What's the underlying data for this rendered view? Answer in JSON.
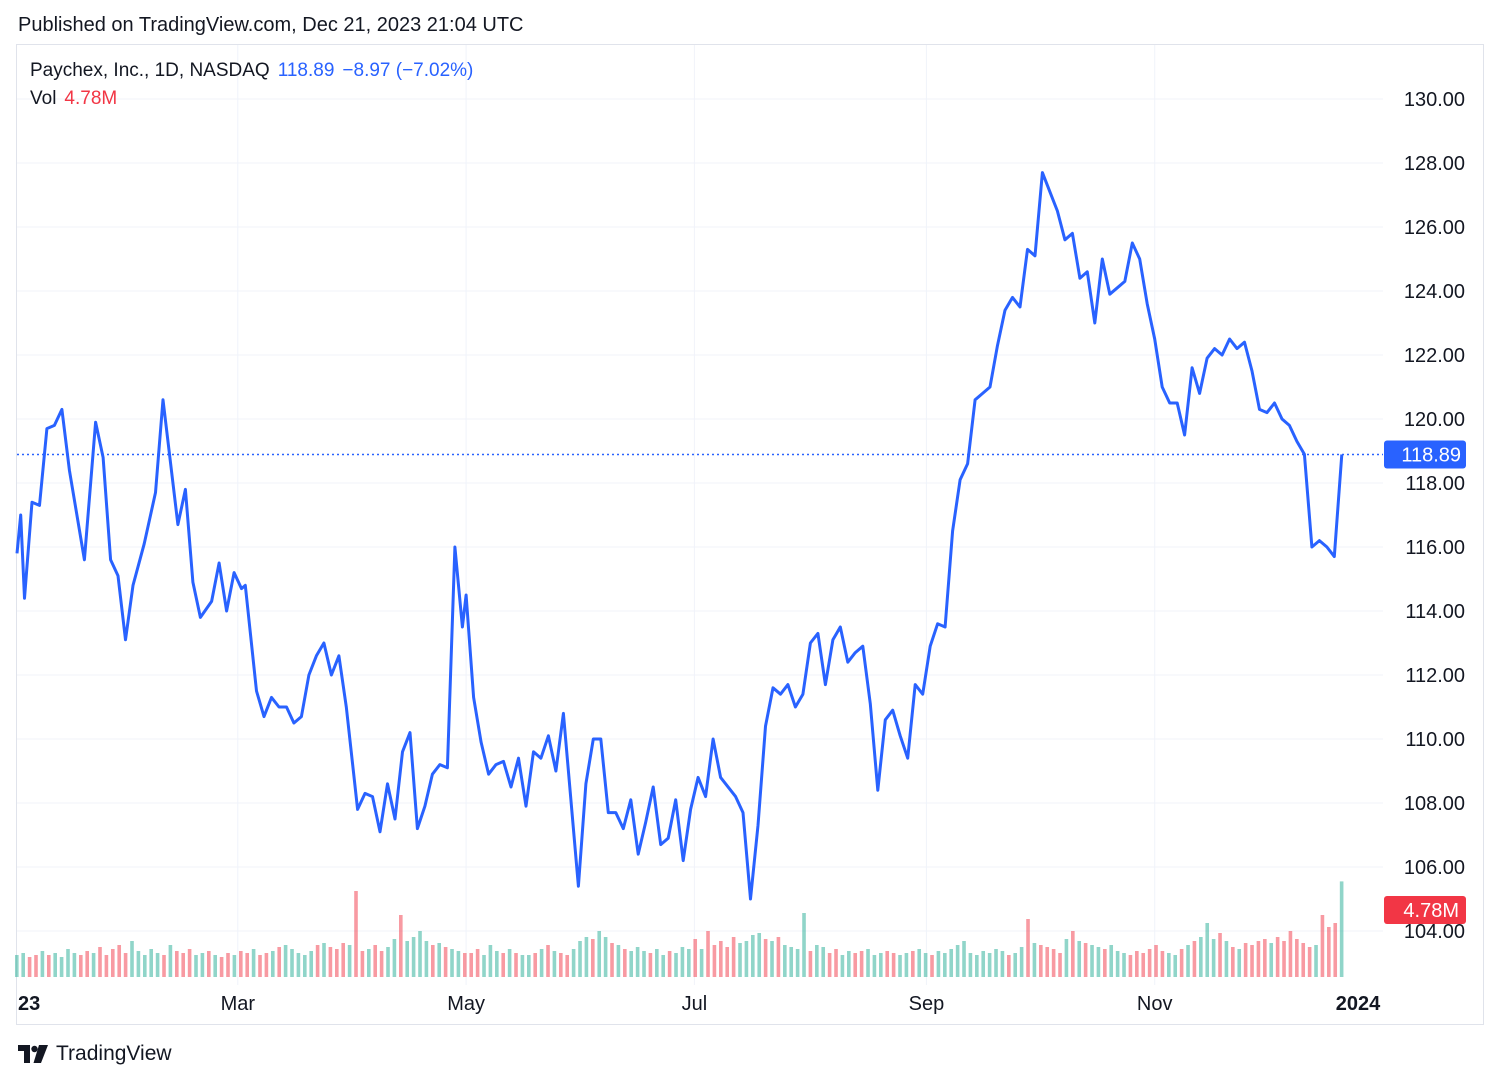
{
  "header": {
    "published": "Published on TradingView.com, Dec 21, 2023 21:04 UTC"
  },
  "legend": {
    "symbol": "Paychex, Inc., 1D, NASDAQ",
    "last": "118.89",
    "change": "−8.97 (−7.02%)",
    "vol_label": "Vol",
    "vol_value": "4.78M"
  },
  "footer": {
    "brand": "TradingView"
  },
  "colors": {
    "line": "#2962ff",
    "vol_up": "#22ab94",
    "vol_down": "#f23645",
    "last_price_badge": "#2962ff",
    "vol_badge": "#f23645",
    "grid": "#f0f3fa"
  },
  "chart_data": {
    "type": "line",
    "symbol": "PAYX",
    "interval": "1D",
    "y_axis": {
      "ticks": [
        "104.00",
        "106.00",
        "108.00",
        "110.00",
        "112.00",
        "114.00",
        "116.00",
        "118.00",
        "120.00",
        "122.00",
        "124.00",
        "126.00",
        "128.00",
        "130.00"
      ],
      "range": [
        103.0,
        131.5
      ],
      "position": "right"
    },
    "x_axis": {
      "ticks": [
        "23",
        "Mar",
        "May",
        "Jul",
        "Sep",
        "Nov",
        "2024"
      ],
      "tick_dates": [
        "2023-01-01",
        "2023-03-01",
        "2023-05-01",
        "2023-07-01",
        "2023-09-01",
        "2023-11-01",
        "2024-01-01"
      ],
      "range": [
        "2023-01-01",
        "2024-01-01"
      ]
    },
    "last_price_label": "118.89",
    "last_price": 118.89,
    "volume_label": "4.78M",
    "grid": true,
    "series": [
      {
        "name": "Paychex, Inc.",
        "points": [
          [
            "2023-01-01",
            115.8
          ],
          [
            "2023-01-02",
            117.0
          ],
          [
            "2023-01-03",
            114.4
          ],
          [
            "2023-01-05",
            117.4
          ],
          [
            "2023-01-07",
            117.3
          ],
          [
            "2023-01-09",
            119.7
          ],
          [
            "2023-01-11",
            119.8
          ],
          [
            "2023-01-13",
            120.3
          ],
          [
            "2023-01-15",
            118.4
          ],
          [
            "2023-01-19",
            115.6
          ],
          [
            "2023-01-22",
            119.9
          ],
          [
            "2023-01-24",
            118.8
          ],
          [
            "2023-01-26",
            115.6
          ],
          [
            "2023-01-28",
            115.1
          ],
          [
            "2023-01-30",
            113.1
          ],
          [
            "2023-02-01",
            114.8
          ],
          [
            "2023-02-04",
            116.1
          ],
          [
            "2023-02-07",
            117.7
          ],
          [
            "2023-02-09",
            120.6
          ],
          [
            "2023-02-13",
            116.7
          ],
          [
            "2023-02-15",
            117.8
          ],
          [
            "2023-02-17",
            114.9
          ],
          [
            "2023-02-19",
            113.8
          ],
          [
            "2023-02-22",
            114.3
          ],
          [
            "2023-02-24",
            115.5
          ],
          [
            "2023-02-26",
            114.0
          ],
          [
            "2023-02-28",
            115.2
          ],
          [
            "2023-03-02",
            114.7
          ],
          [
            "2023-03-03",
            114.8
          ],
          [
            "2023-03-06",
            111.5
          ],
          [
            "2023-03-08",
            110.7
          ],
          [
            "2023-03-10",
            111.3
          ],
          [
            "2023-03-12",
            111.0
          ],
          [
            "2023-03-14",
            111.0
          ],
          [
            "2023-03-16",
            110.5
          ],
          [
            "2023-03-18",
            110.7
          ],
          [
            "2023-03-20",
            112.0
          ],
          [
            "2023-03-22",
            112.6
          ],
          [
            "2023-03-24",
            113.0
          ],
          [
            "2023-03-26",
            112.0
          ],
          [
            "2023-03-28",
            112.6
          ],
          [
            "2023-03-30",
            111.0
          ],
          [
            "2023-04-02",
            107.8
          ],
          [
            "2023-04-04",
            108.3
          ],
          [
            "2023-04-06",
            108.2
          ],
          [
            "2023-04-08",
            107.1
          ],
          [
            "2023-04-10",
            108.6
          ],
          [
            "2023-04-12",
            107.5
          ],
          [
            "2023-04-14",
            109.6
          ],
          [
            "2023-04-16",
            110.2
          ],
          [
            "2023-04-18",
            107.2
          ],
          [
            "2023-04-20",
            107.9
          ],
          [
            "2023-04-22",
            108.9
          ],
          [
            "2023-04-24",
            109.2
          ],
          [
            "2023-04-26",
            109.1
          ],
          [
            "2023-04-28",
            116.0
          ],
          [
            "2023-04-30",
            113.5
          ],
          [
            "2023-05-01",
            114.5
          ],
          [
            "2023-05-03",
            111.3
          ],
          [
            "2023-05-05",
            109.9
          ],
          [
            "2023-05-07",
            108.9
          ],
          [
            "2023-05-09",
            109.2
          ],
          [
            "2023-05-11",
            109.3
          ],
          [
            "2023-05-13",
            108.5
          ],
          [
            "2023-05-15",
            109.4
          ],
          [
            "2023-05-17",
            107.9
          ],
          [
            "2023-05-19",
            109.6
          ],
          [
            "2023-05-21",
            109.4
          ],
          [
            "2023-05-23",
            110.1
          ],
          [
            "2023-05-25",
            109.0
          ],
          [
            "2023-05-27",
            110.8
          ],
          [
            "2023-05-31",
            105.4
          ],
          [
            "2023-06-02",
            108.6
          ],
          [
            "2023-06-04",
            110.0
          ],
          [
            "2023-06-06",
            110.0
          ],
          [
            "2023-06-08",
            107.7
          ],
          [
            "2023-06-10",
            107.7
          ],
          [
            "2023-06-12",
            107.2
          ],
          [
            "2023-06-14",
            108.1
          ],
          [
            "2023-06-16",
            106.4
          ],
          [
            "2023-06-18",
            107.4
          ],
          [
            "2023-06-20",
            108.5
          ],
          [
            "2023-06-22",
            106.7
          ],
          [
            "2023-06-24",
            106.9
          ],
          [
            "2023-06-26",
            108.1
          ],
          [
            "2023-06-28",
            106.2
          ],
          [
            "2023-06-30",
            107.8
          ],
          [
            "2023-07-02",
            108.8
          ],
          [
            "2023-07-04",
            108.2
          ],
          [
            "2023-07-06",
            110.0
          ],
          [
            "2023-07-08",
            108.8
          ],
          [
            "2023-07-12",
            108.2
          ],
          [
            "2023-07-14",
            107.7
          ],
          [
            "2023-07-16",
            105.0
          ],
          [
            "2023-07-18",
            107.3
          ],
          [
            "2023-07-20",
            110.4
          ],
          [
            "2023-07-22",
            111.6
          ],
          [
            "2023-07-24",
            111.4
          ],
          [
            "2023-07-26",
            111.7
          ],
          [
            "2023-07-28",
            111.0
          ],
          [
            "2023-07-30",
            111.4
          ],
          [
            "2023-08-01",
            113.0
          ],
          [
            "2023-08-03",
            113.3
          ],
          [
            "2023-08-05",
            111.7
          ],
          [
            "2023-08-07",
            113.1
          ],
          [
            "2023-08-09",
            113.5
          ],
          [
            "2023-08-11",
            112.4
          ],
          [
            "2023-08-13",
            112.7
          ],
          [
            "2023-08-15",
            112.9
          ],
          [
            "2023-08-17",
            111.1
          ],
          [
            "2023-08-19",
            108.4
          ],
          [
            "2023-08-21",
            110.6
          ],
          [
            "2023-08-23",
            110.9
          ],
          [
            "2023-08-25",
            110.1
          ],
          [
            "2023-08-27",
            109.4
          ],
          [
            "2023-08-29",
            111.7
          ],
          [
            "2023-08-31",
            111.4
          ],
          [
            "2023-09-02",
            112.9
          ],
          [
            "2023-09-04",
            113.6
          ],
          [
            "2023-09-06",
            113.5
          ],
          [
            "2023-09-08",
            116.5
          ],
          [
            "2023-09-10",
            118.1
          ],
          [
            "2023-09-12",
            118.6
          ],
          [
            "2023-09-14",
            120.6
          ],
          [
            "2023-09-16",
            120.8
          ],
          [
            "2023-09-18",
            121.0
          ],
          [
            "2023-09-20",
            122.3
          ],
          [
            "2023-09-22",
            123.4
          ],
          [
            "2023-09-24",
            123.8
          ],
          [
            "2023-09-26",
            123.5
          ],
          [
            "2023-09-28",
            125.3
          ],
          [
            "2023-09-30",
            125.1
          ],
          [
            "2023-10-02",
            127.7
          ],
          [
            "2023-10-04",
            127.1
          ],
          [
            "2023-10-06",
            126.5
          ],
          [
            "2023-10-08",
            125.6
          ],
          [
            "2023-10-10",
            125.8
          ],
          [
            "2023-10-12",
            124.4
          ],
          [
            "2023-10-14",
            124.6
          ],
          [
            "2023-10-16",
            123.0
          ],
          [
            "2023-10-18",
            125.0
          ],
          [
            "2023-10-20",
            123.9
          ],
          [
            "2023-10-22",
            124.1
          ],
          [
            "2023-10-24",
            124.3
          ],
          [
            "2023-10-26",
            125.5
          ],
          [
            "2023-10-28",
            125.0
          ],
          [
            "2023-10-30",
            123.6
          ],
          [
            "2023-11-01",
            122.5
          ],
          [
            "2023-11-03",
            121.0
          ],
          [
            "2023-11-05",
            120.5
          ],
          [
            "2023-11-07",
            120.5
          ],
          [
            "2023-11-09",
            119.5
          ],
          [
            "2023-11-11",
            121.6
          ],
          [
            "2023-11-13",
            120.8
          ],
          [
            "2023-11-15",
            121.9
          ],
          [
            "2023-11-17",
            122.2
          ],
          [
            "2023-11-19",
            122.0
          ],
          [
            "2023-11-21",
            122.5
          ],
          [
            "2023-11-23",
            122.2
          ],
          [
            "2023-11-25",
            122.4
          ],
          [
            "2023-11-27",
            121.5
          ],
          [
            "2023-11-29",
            120.3
          ],
          [
            "2023-12-01",
            120.2
          ],
          [
            "2023-12-03",
            120.5
          ],
          [
            "2023-12-05",
            120.0
          ],
          [
            "2023-12-07",
            119.8
          ],
          [
            "2023-12-09",
            119.3
          ],
          [
            "2023-12-11",
            118.9
          ],
          [
            "2023-12-13",
            116.0
          ],
          [
            "2023-12-15",
            116.2
          ],
          [
            "2023-12-17",
            116.0
          ],
          [
            "2023-12-19",
            115.7
          ],
          [
            "2023-12-21",
            118.89
          ]
        ]
      }
    ],
    "volume_series": {
      "name": "Vol",
      "values": [
        1.1,
        1.2,
        1.0,
        1.1,
        1.3,
        1.1,
        1.2,
        1.0,
        1.4,
        1.2,
        1.1,
        1.3,
        1.2,
        1.5,
        1.1,
        1.4,
        1.6,
        1.2,
        1.8,
        1.3,
        1.1,
        1.4,
        1.2,
        1.1,
        1.6,
        1.3,
        1.2,
        1.4,
        1.1,
        1.2,
        1.3,
        1.1,
        1.0,
        1.2,
        1.1,
        1.3,
        1.2,
        1.4,
        1.1,
        1.2,
        1.3,
        1.5,
        1.6,
        1.4,
        1.2,
        1.1,
        1.3,
        1.6,
        1.7,
        1.5,
        1.4,
        1.7,
        1.6,
        4.3,
        1.3,
        1.4,
        1.6,
        1.3,
        1.5,
        1.9,
        3.1,
        1.8,
        2.0,
        2.3,
        1.8,
        1.6,
        1.7,
        1.5,
        1.4,
        1.3,
        1.2,
        1.2,
        1.4,
        1.1,
        1.6,
        1.3,
        1.2,
        1.4,
        1.2,
        1.1,
        1.1,
        1.2,
        1.4,
        1.6,
        1.3,
        1.2,
        1.1,
        1.4,
        1.8,
        2.0,
        1.9,
        2.3,
        2.0,
        1.7,
        1.6,
        1.4,
        1.3,
        1.5,
        1.3,
        1.2,
        1.4,
        1.1,
        1.3,
        1.2,
        1.5,
        1.4,
        1.9,
        1.4,
        2.3,
        1.6,
        1.8,
        1.5,
        2.0,
        1.7,
        1.8,
        2.1,
        2.2,
        1.9,
        1.8,
        2.0,
        1.6,
        1.5,
        1.4,
        3.2,
        1.3,
        1.6,
        1.5,
        1.2,
        1.4,
        1.1,
        1.3,
        1.2,
        1.3,
        1.4,
        1.1,
        1.2,
        1.3,
        1.2,
        1.1,
        1.2,
        1.3,
        1.4,
        1.2,
        1.1,
        1.3,
        1.2,
        1.4,
        1.6,
        1.8,
        1.2,
        1.1,
        1.3,
        1.2,
        1.4,
        1.3,
        1.1,
        1.2,
        1.5,
        2.9,
        1.7,
        1.6,
        1.5,
        1.4,
        1.2,
        1.9,
        2.3,
        1.8,
        1.7,
        1.6,
        1.5,
        1.4,
        1.6,
        1.3,
        1.2,
        1.1,
        1.3,
        1.2,
        1.4,
        1.6,
        1.3,
        1.2,
        1.1,
        1.4,
        1.6,
        1.8,
        2.0,
        2.7,
        1.9,
        2.2,
        1.8,
        1.5,
        1.4,
        1.7,
        1.6,
        1.8,
        1.9,
        1.7,
        2.0,
        1.8,
        2.3,
        1.9,
        1.7,
        1.5,
        1.6,
        3.1,
        2.5,
        2.7,
        4.78
      ]
    }
  }
}
